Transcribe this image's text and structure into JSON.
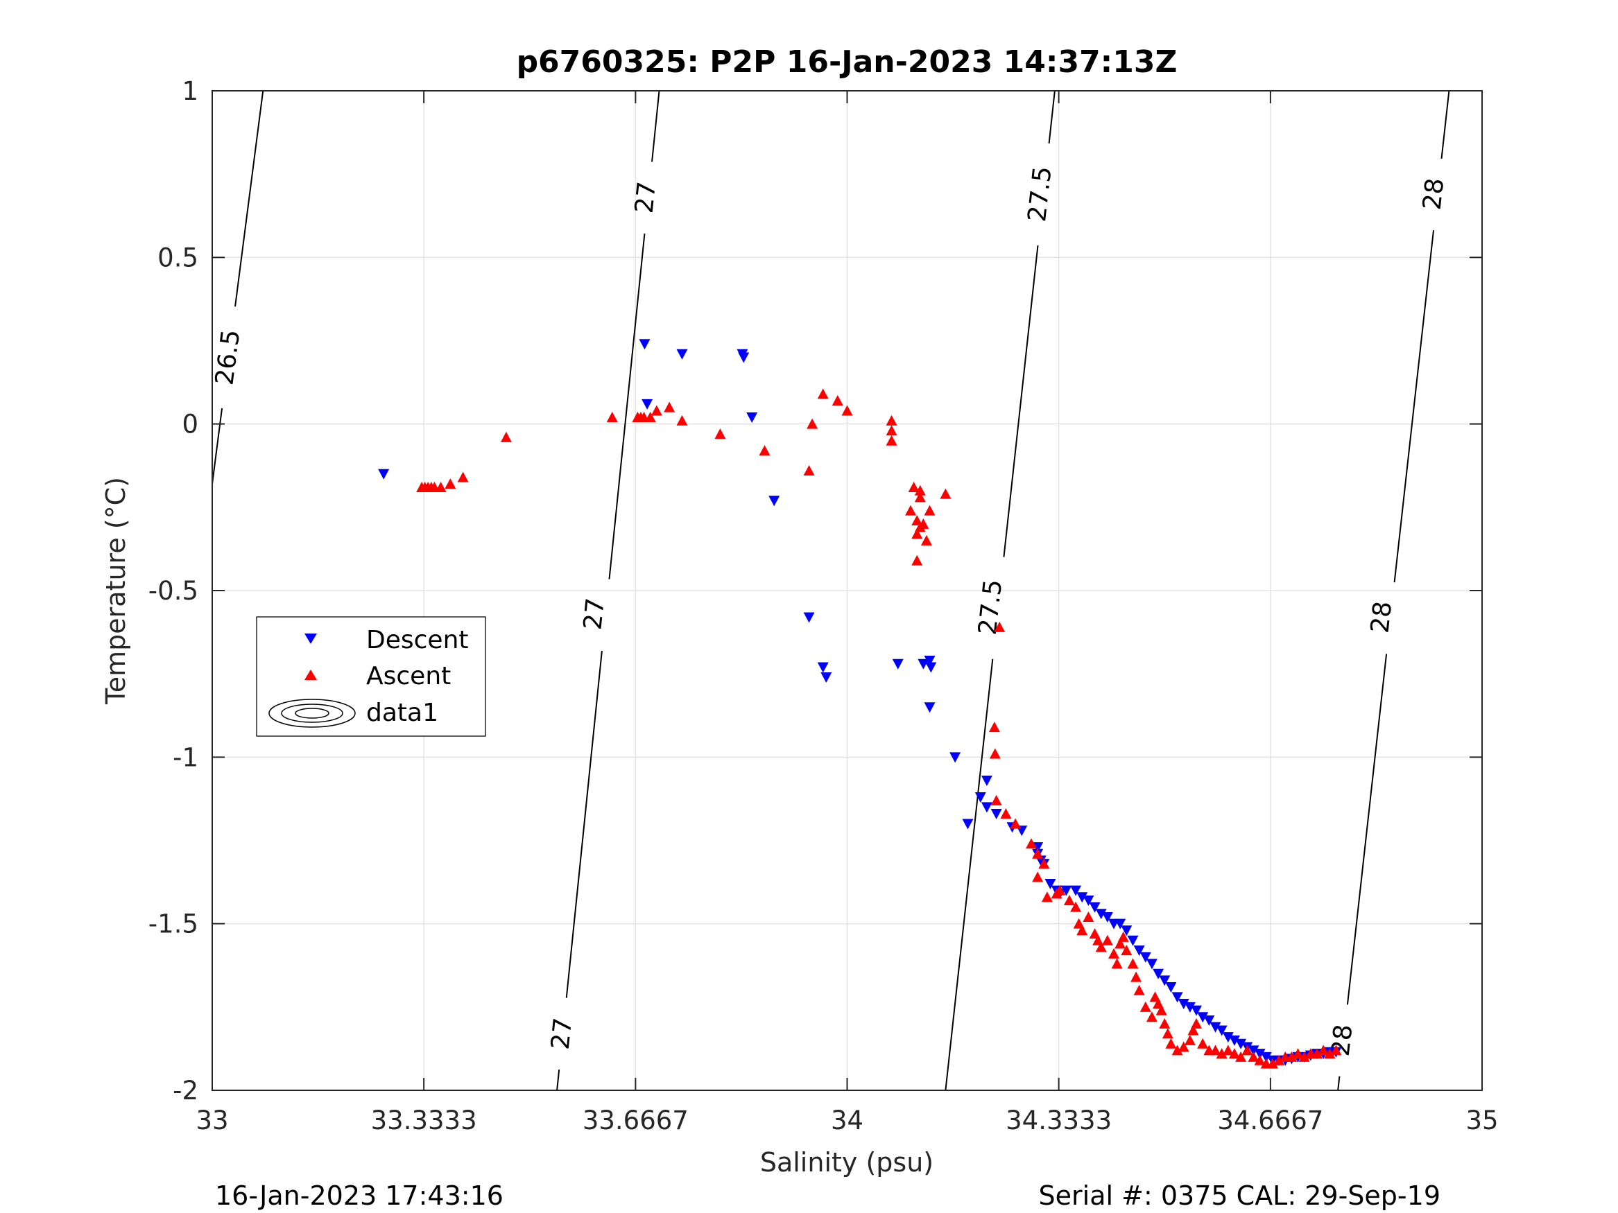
{
  "chart_data": {
    "type": "scatter",
    "title": "p6760325: P2P 16-Jan-2023 14:37:13Z",
    "xlabel": "Salinity (psu)",
    "ylabel": "Temperature (°C)",
    "xlim": [
      33,
      35
    ],
    "ylim": [
      -2,
      1
    ],
    "x_ticks": [
      33,
      33.3333,
      33.6667,
      34,
      34.3333,
      34.6667,
      35
    ],
    "x_tick_labels": [
      "33",
      "33.3333",
      "33.6667",
      "34",
      "34.3333",
      "34.6667",
      "35"
    ],
    "y_ticks": [
      1,
      0.5,
      0,
      -0.5,
      -1,
      -1.5,
      -2
    ],
    "y_tick_labels": [
      "1",
      "0.5",
      "0",
      "-0.5",
      "-1",
      "-1.5",
      "-2"
    ],
    "grid": true,
    "legend_position": "left",
    "legend": [
      {
        "label": "Descent",
        "marker": "triangle-down",
        "color": "#0000ff"
      },
      {
        "label": "Ascent",
        "marker": "triangle-up",
        "color": "#ff0000"
      },
      {
        "label": "data1",
        "marker": "contour"
      }
    ],
    "contours": [
      {
        "level": "26.5",
        "points": [
          [
            33.08,
            1.0
          ],
          [
            33.0,
            -0.18
          ]
        ],
        "labels": [
          {
            "x": 33.025,
            "y": 0.2
          }
        ]
      },
      {
        "level": "27",
        "points": [
          [
            33.704,
            1.0
          ],
          [
            33.543,
            -2.0
          ]
        ],
        "labels": [
          {
            "x": 33.683,
            "y": 0.68
          },
          {
            "x": 33.602,
            "y": -0.57
          },
          {
            "x": 33.551,
            "y": -1.83
          }
        ]
      },
      {
        "level": "27.5",
        "points": [
          [
            34.327,
            1.0
          ],
          [
            34.155,
            -2.0
          ]
        ],
        "labels": [
          {
            "x": 34.304,
            "y": 0.69
          },
          {
            "x": 34.226,
            "y": -0.55
          }
        ]
      },
      {
        "level": "28",
        "points": [
          [
            34.948,
            1.0
          ],
          [
            34.773,
            -2.0
          ]
        ],
        "labels": [
          {
            "x": 34.924,
            "y": 0.69
          },
          {
            "x": 34.842,
            "y": -0.58
          },
          {
            "x": 34.78,
            "y": -1.85
          }
        ]
      }
    ],
    "series": [
      {
        "name": "Descent",
        "marker": "triangle-down",
        "color": "#0000ff",
        "points": [
          [
            33.27,
            -0.15
          ],
          [
            33.681,
            0.24
          ],
          [
            33.685,
            0.06
          ],
          [
            33.74,
            0.21
          ],
          [
            33.835,
            0.21
          ],
          [
            33.837,
            0.2
          ],
          [
            33.85,
            0.02
          ],
          [
            33.885,
            -0.23
          ],
          [
            33.94,
            -0.58
          ],
          [
            33.962,
            -0.73
          ],
          [
            33.967,
            -0.76
          ],
          [
            34.08,
            -0.72
          ],
          [
            34.12,
            -0.72
          ],
          [
            34.13,
            -0.71
          ],
          [
            34.132,
            -0.73
          ],
          [
            34.13,
            -0.85
          ],
          [
            34.17,
            -1.0
          ],
          [
            34.19,
            -1.2
          ],
          [
            34.21,
            -1.12
          ],
          [
            34.22,
            -1.07
          ],
          [
            34.22,
            -1.15
          ],
          [
            34.235,
            -1.17
          ],
          [
            34.26,
            -1.21
          ],
          [
            34.275,
            -1.22
          ],
          [
            34.3,
            -1.27
          ],
          [
            34.3,
            -1.29
          ],
          [
            34.305,
            -1.31
          ],
          [
            34.31,
            -1.32
          ],
          [
            34.32,
            -1.38
          ],
          [
            34.33,
            -1.4
          ],
          [
            34.335,
            -1.41
          ],
          [
            34.345,
            -1.4
          ],
          [
            34.36,
            -1.4
          ],
          [
            34.37,
            -1.42
          ],
          [
            34.38,
            -1.43
          ],
          [
            34.39,
            -1.45
          ],
          [
            34.4,
            -1.47
          ],
          [
            34.41,
            -1.48
          ],
          [
            34.42,
            -1.5
          ],
          [
            34.43,
            -1.5
          ],
          [
            34.44,
            -1.52
          ],
          [
            34.45,
            -1.55
          ],
          [
            34.46,
            -1.58
          ],
          [
            34.47,
            -1.6
          ],
          [
            34.48,
            -1.62
          ],
          [
            34.49,
            -1.65
          ],
          [
            34.5,
            -1.67
          ],
          [
            34.51,
            -1.69
          ],
          [
            34.52,
            -1.72
          ],
          [
            34.53,
            -1.74
          ],
          [
            34.54,
            -1.75
          ],
          [
            34.55,
            -1.76
          ],
          [
            34.56,
            -1.78
          ],
          [
            34.57,
            -1.79
          ],
          [
            34.58,
            -1.81
          ],
          [
            34.59,
            -1.82
          ],
          [
            34.6,
            -1.84
          ],
          [
            34.61,
            -1.85
          ],
          [
            34.62,
            -1.86
          ],
          [
            34.63,
            -1.87
          ],
          [
            34.64,
            -1.88
          ],
          [
            34.65,
            -1.89
          ],
          [
            34.66,
            -1.9
          ],
          [
            34.67,
            -1.91
          ],
          [
            34.68,
            -1.91
          ],
          [
            34.69,
            -1.91
          ],
          [
            34.7,
            -1.905
          ],
          [
            34.71,
            -1.9
          ],
          [
            34.72,
            -1.9
          ],
          [
            34.73,
            -1.895
          ],
          [
            34.74,
            -1.89
          ],
          [
            34.75,
            -1.89
          ],
          [
            34.76,
            -1.885
          ],
          [
            34.77,
            -1.885
          ]
        ]
      },
      {
        "name": "Ascent",
        "marker": "triangle-up",
        "color": "#ff0000",
        "points": [
          [
            33.33,
            -0.19
          ],
          [
            33.335,
            -0.19
          ],
          [
            33.34,
            -0.19
          ],
          [
            33.345,
            -0.19
          ],
          [
            33.35,
            -0.19
          ],
          [
            33.36,
            -0.19
          ],
          [
            33.375,
            -0.18
          ],
          [
            33.395,
            -0.16
          ],
          [
            33.463,
            -0.04
          ],
          [
            33.63,
            0.02
          ],
          [
            33.67,
            0.02
          ],
          [
            33.675,
            0.02
          ],
          [
            33.68,
            0.02
          ],
          [
            33.69,
            0.02
          ],
          [
            33.7,
            0.04
          ],
          [
            33.72,
            0.05
          ],
          [
            33.74,
            0.01
          ],
          [
            33.8,
            -0.03
          ],
          [
            33.87,
            -0.08
          ],
          [
            33.94,
            -0.14
          ],
          [
            33.945,
            0.0
          ],
          [
            33.962,
            0.09
          ],
          [
            33.985,
            0.07
          ],
          [
            34.0,
            0.04
          ],
          [
            34.07,
            0.01
          ],
          [
            34.07,
            -0.02
          ],
          [
            34.07,
            -0.05
          ],
          [
            34.105,
            -0.19
          ],
          [
            34.115,
            -0.2
          ],
          [
            34.115,
            -0.22
          ],
          [
            34.1,
            -0.26
          ],
          [
            34.11,
            -0.29
          ],
          [
            34.115,
            -0.31
          ],
          [
            34.11,
            -0.33
          ],
          [
            34.12,
            -0.3
          ],
          [
            34.11,
            -0.41
          ],
          [
            34.125,
            -0.35
          ],
          [
            34.13,
            -0.26
          ],
          [
            34.155,
            -0.21
          ],
          [
            34.24,
            -0.61
          ],
          [
            34.232,
            -0.91
          ],
          [
            34.233,
            -0.99
          ],
          [
            34.235,
            -1.13
          ],
          [
            34.25,
            -1.17
          ],
          [
            34.265,
            -1.2
          ],
          [
            34.29,
            -1.26
          ],
          [
            34.3,
            -1.29
          ],
          [
            34.31,
            -1.32
          ],
          [
            34.3,
            -1.36
          ],
          [
            34.315,
            -1.42
          ],
          [
            34.33,
            -1.41
          ],
          [
            34.335,
            -1.4
          ],
          [
            34.35,
            -1.43
          ],
          [
            34.36,
            -1.45
          ],
          [
            34.365,
            -1.5
          ],
          [
            34.37,
            -1.52
          ],
          [
            34.38,
            -1.48
          ],
          [
            34.39,
            -1.53
          ],
          [
            34.395,
            -1.55
          ],
          [
            34.4,
            -1.57
          ],
          [
            34.41,
            -1.55
          ],
          [
            34.42,
            -1.59
          ],
          [
            34.425,
            -1.62
          ],
          [
            34.43,
            -1.56
          ],
          [
            34.435,
            -1.54
          ],
          [
            34.44,
            -1.58
          ],
          [
            34.45,
            -1.62
          ],
          [
            34.455,
            -1.66
          ],
          [
            34.46,
            -1.7
          ],
          [
            34.47,
            -1.75
          ],
          [
            34.48,
            -1.78
          ],
          [
            34.485,
            -1.72
          ],
          [
            34.49,
            -1.74
          ],
          [
            34.495,
            -1.76
          ],
          [
            34.5,
            -1.8
          ],
          [
            34.505,
            -1.83
          ],
          [
            34.51,
            -1.86
          ],
          [
            34.52,
            -1.88
          ],
          [
            34.53,
            -1.87
          ],
          [
            34.54,
            -1.85
          ],
          [
            34.545,
            -1.82
          ],
          [
            34.55,
            -1.8
          ],
          [
            34.56,
            -1.86
          ],
          [
            34.57,
            -1.88
          ],
          [
            34.58,
            -1.88
          ],
          [
            34.59,
            -1.89
          ],
          [
            34.6,
            -1.88
          ],
          [
            34.61,
            -1.89
          ],
          [
            34.62,
            -1.9
          ],
          [
            34.63,
            -1.88
          ],
          [
            34.64,
            -1.9
          ],
          [
            34.65,
            -1.91
          ],
          [
            34.66,
            -1.92
          ],
          [
            34.67,
            -1.92
          ],
          [
            34.68,
            -1.91
          ],
          [
            34.69,
            -1.9
          ],
          [
            34.7,
            -1.9
          ],
          [
            34.71,
            -1.89
          ],
          [
            34.72,
            -1.9
          ],
          [
            34.73,
            -1.89
          ],
          [
            34.74,
            -1.89
          ],
          [
            34.75,
            -1.88
          ],
          [
            34.76,
            -1.89
          ],
          [
            34.77,
            -1.88
          ]
        ]
      }
    ]
  },
  "footer": {
    "timestamp": "16-Jan-2023 17:43:16",
    "serial": "Serial #: 0375  CAL: 29-Sep-19"
  }
}
